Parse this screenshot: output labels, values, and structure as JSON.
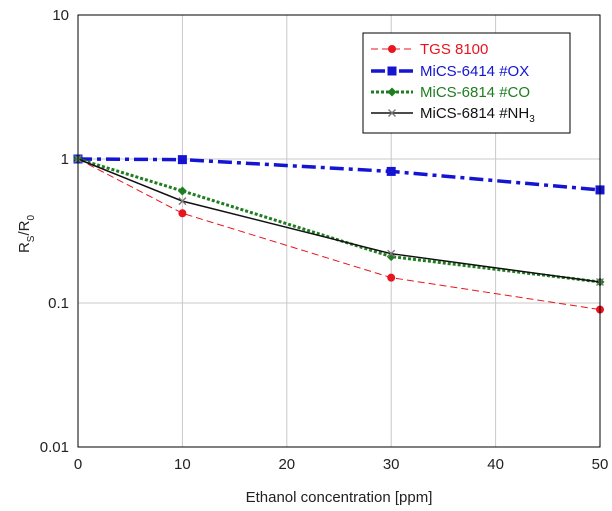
{
  "chart_data": {
    "type": "line",
    "xlabel": "Ethanol concentration  [ppm]",
    "ylabel_parts": {
      "main": "R",
      "sub1": "S",
      "slash": "/R",
      "sub2": "0"
    },
    "xlim": [
      0,
      50
    ],
    "ylim": [
      0.01,
      10
    ],
    "yscale": "log",
    "grid": true,
    "legend_position": "top-right",
    "x_ticks": [
      "0",
      "10",
      "20",
      "30",
      "40",
      "50"
    ],
    "y_ticks": [
      "10",
      "1",
      "0.1",
      "0.01"
    ],
    "series": [
      {
        "name": "TGS 8100",
        "color": "#e8141e",
        "line_style": "dashed-thin",
        "marker": "circle",
        "x": [
          0,
          10,
          30,
          50
        ],
        "y": [
          1.0,
          0.42,
          0.15,
          0.09
        ]
      },
      {
        "name": "MiCS-6414 #OX",
        "color": "#1414d2",
        "line_style": "dash-dot-thick",
        "marker": "square",
        "x": [
          0,
          10,
          30,
          50
        ],
        "y": [
          1.0,
          0.99,
          0.82,
          0.61
        ]
      },
      {
        "name": "MiCS-6814 #CO",
        "color": "#1e7d1e",
        "line_style": "dotted-thick",
        "marker": "diamond",
        "x": [
          0,
          10,
          30,
          50
        ],
        "y": [
          1.0,
          0.6,
          0.21,
          0.14
        ]
      },
      {
        "name": "MiCS-6814 #NH",
        "name_sub": "3",
        "color": "#111111",
        "line_style": "solid",
        "marker": "x",
        "x": [
          0,
          10,
          30,
          50
        ],
        "y": [
          1.0,
          0.51,
          0.22,
          0.14
        ]
      }
    ]
  }
}
